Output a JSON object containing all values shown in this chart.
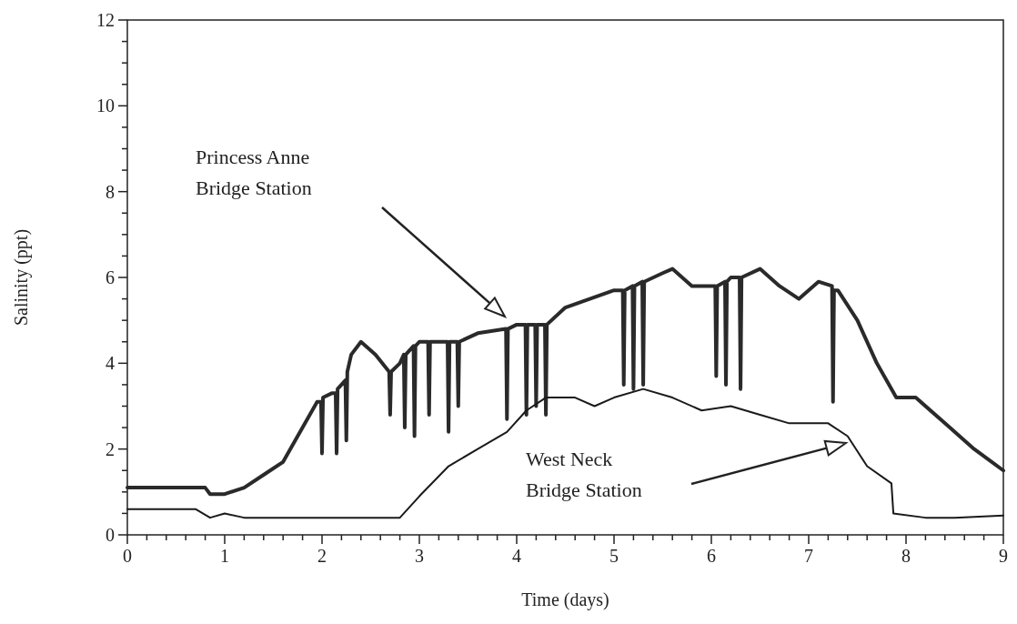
{
  "chart_data": {
    "type": "line",
    "xlabel": "Time (days)",
    "ylabel": "Salinity (ppt)",
    "xlim": [
      0,
      9
    ],
    "ylim": [
      0,
      12
    ],
    "xticks": [
      0,
      {
        "value": 0.2,
        "label": null
      },
      {
        "value": 0.4,
        "label": null
      },
      {
        "value": 0.6,
        "label": null
      },
      {
        "value": 0.8,
        "label": null
      },
      1,
      {
        "value": 1.2,
        "label": null
      },
      {
        "value": 1.4,
        "label": null
      },
      {
        "value": 1.6,
        "label": null
      },
      {
        "value": 1.8,
        "label": null
      },
      2,
      {
        "value": 2.2,
        "label": null
      },
      {
        "value": 2.4,
        "label": null
      },
      {
        "value": 2.6,
        "label": null
      },
      {
        "value": 2.8,
        "label": null
      },
      3,
      {
        "value": 3.2,
        "label": null
      },
      {
        "value": 3.4,
        "label": null
      },
      {
        "value": 3.6,
        "label": null
      },
      {
        "value": 3.8,
        "label": null
      },
      4,
      {
        "value": 4.2,
        "label": null
      },
      {
        "value": 4.4,
        "label": null
      },
      {
        "value": 4.6,
        "label": null
      },
      {
        "value": 4.8,
        "label": null
      },
      5,
      {
        "value": 5.2,
        "label": null
      },
      {
        "value": 5.4,
        "label": null
      },
      {
        "value": 5.6,
        "label": null
      },
      {
        "value": 5.8,
        "label": null
      },
      6,
      {
        "value": 6.2,
        "label": null
      },
      {
        "value": 6.4,
        "label": null
      },
      {
        "value": 6.6,
        "label": null
      },
      {
        "value": 6.8,
        "label": null
      },
      7,
      {
        "value": 7.2,
        "label": null
      },
      {
        "value": 7.4,
        "label": null
      },
      {
        "value": 7.6,
        "label": null
      },
      {
        "value": 7.8,
        "label": null
      },
      8,
      {
        "value": 8.2,
        "label": null
      },
      {
        "value": 8.4,
        "label": null
      },
      {
        "value": 8.6,
        "label": null
      },
      {
        "value": 8.8,
        "label": null
      },
      9
    ],
    "yticks": [
      0,
      {
        "value": 0.5,
        "label": null
      },
      {
        "value": 1,
        "label": null
      },
      {
        "value": 1.5,
        "label": null
      },
      2,
      {
        "value": 2.5,
        "label": null
      },
      {
        "value": 3,
        "label": null
      },
      {
        "value": 3.5,
        "label": null
      },
      4,
      {
        "value": 4.5,
        "label": null
      },
      {
        "value": 5,
        "label": null
      },
      {
        "value": 5.5,
        "label": null
      },
      6,
      {
        "value": 6.5,
        "label": null
      },
      {
        "value": 7,
        "label": null
      },
      {
        "value": 7.5,
        "label": null
      },
      8,
      {
        "value": 8.5,
        "label": null
      },
      {
        "value": 9,
        "label": null
      },
      {
        "value": 9.5,
        "label": null
      },
      10,
      {
        "value": 10.5,
        "label": null
      },
      {
        "value": 11,
        "label": null
      },
      {
        "value": 11.5,
        "label": null
      },
      12
    ],
    "grid": false,
    "marker": "none",
    "line_style": "solid",
    "annotations": [
      "Princess Anne Bridge Station",
      "West Neck Bridge Station"
    ],
    "series": [
      {
        "color": "#2a2a2a",
        "x": [
          0,
          0.5,
          0.8,
          0.85,
          1.0,
          1.2,
          1.4,
          1.6,
          1.8,
          1.95,
          1.99,
          2.0,
          2.01,
          2.1,
          2.14,
          2.15,
          2.16,
          2.2,
          2.24,
          2.25,
          2.26,
          2.3,
          2.4,
          2.55,
          2.69,
          2.7,
          2.71,
          2.8,
          2.84,
          2.85,
          2.86,
          2.94,
          2.95,
          2.96,
          3.0,
          3.09,
          3.1,
          3.11,
          3.29,
          3.3,
          3.31,
          3.39,
          3.4,
          3.41,
          3.6,
          3.89,
          3.9,
          3.91,
          4.0,
          4.09,
          4.1,
          4.11,
          4.19,
          4.2,
          4.21,
          4.29,
          4.3,
          4.31,
          4.5,
          5.0,
          5.09,
          5.1,
          5.11,
          5.19,
          5.2,
          5.21,
          5.29,
          5.3,
          5.31,
          5.5,
          5.6,
          5.8,
          6.0,
          6.04,
          6.05,
          6.06,
          6.14,
          6.15,
          6.16,
          6.2,
          6.29,
          6.3,
          6.31,
          6.5,
          6.7,
          6.9,
          7.1,
          7.24,
          7.25,
          7.26,
          7.3,
          7.5,
          7.7,
          7.9,
          8.1,
          8.4,
          8.7,
          9
        ],
        "values": [
          1.1,
          1.1,
          1.1,
          0.95,
          0.95,
          1.1,
          1.4,
          1.7,
          2.5,
          3.1,
          3.1,
          1.9,
          3.2,
          3.3,
          3.3,
          1.9,
          3.4,
          3.5,
          3.6,
          2.2,
          3.8,
          4.2,
          4.5,
          4.2,
          3.8,
          2.8,
          3.8,
          4.0,
          4.2,
          2.5,
          4.2,
          4.4,
          2.3,
          4.4,
          4.5,
          4.5,
          2.8,
          4.5,
          4.5,
          2.4,
          4.5,
          4.5,
          3.0,
          4.5,
          4.7,
          4.8,
          2.7,
          4.8,
          4.9,
          4.9,
          2.8,
          4.9,
          4.9,
          3.0,
          4.9,
          4.9,
          2.8,
          4.9,
          5.3,
          5.7,
          5.7,
          3.5,
          5.7,
          5.8,
          3.4,
          5.8,
          5.9,
          3.5,
          5.9,
          6.1,
          6.2,
          5.8,
          5.8,
          5.8,
          3.7,
          5.8,
          5.9,
          3.5,
          5.9,
          6.0,
          6.0,
          3.4,
          6.0,
          6.2,
          5.8,
          5.5,
          5.9,
          5.8,
          3.1,
          5.7,
          5.7,
          5.0,
          4.0,
          3.2,
          3.2,
          2.6,
          2.0,
          1.5
        ]
      },
      {
        "color": "#1a1a1a",
        "x": [
          0,
          0.5,
          0.7,
          0.85,
          1.0,
          1.2,
          1.5,
          2.0,
          2.5,
          2.8,
          3.0,
          3.3,
          3.6,
          3.9,
          4.1,
          4.3,
          4.6,
          4.8,
          5.0,
          5.3,
          5.6,
          5.9,
          6.2,
          6.5,
          6.8,
          7.2,
          7.4,
          7.6,
          7.85,
          7.87,
          8.2,
          8.5,
          9
        ],
        "values": [
          0.6,
          0.6,
          0.6,
          0.4,
          0.5,
          0.4,
          0.4,
          0.4,
          0.4,
          0.4,
          0.9,
          1.6,
          2.0,
          2.4,
          2.9,
          3.2,
          3.2,
          3.0,
          3.2,
          3.4,
          3.2,
          2.9,
          3.0,
          2.8,
          2.6,
          2.6,
          2.3,
          1.6,
          1.2,
          0.5,
          0.4,
          0.4,
          0.45
        ]
      }
    ]
  }
}
